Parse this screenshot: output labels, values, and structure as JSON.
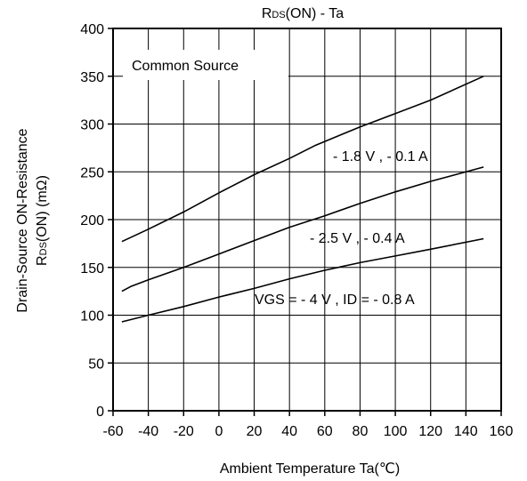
{
  "chart_data": {
    "type": "line",
    "title": {
      "prefix": "R",
      "sub": "DS",
      "suffix": "(ON) - Ta"
    },
    "xlabel": "Ambient Temperature Ta(℃)",
    "ylabel_line1": "Drain-Source ON-Resistance",
    "ylabel_line2": {
      "prefix": "R",
      "sub": "DS",
      "suffix": "(ON) (mΩ)"
    },
    "annotation": "Common Source",
    "xlim": [
      -60,
      160
    ],
    "ylim": [
      0,
      400
    ],
    "xticks": [
      -60,
      -40,
      -20,
      0,
      20,
      40,
      60,
      80,
      100,
      120,
      140,
      160
    ],
    "yticks": [
      0,
      50,
      100,
      150,
      200,
      250,
      300,
      350,
      400
    ],
    "grid": true,
    "series": [
      {
        "name": "- 1.8 V , - 0.1 A",
        "x": [
          -55,
          -40,
          -20,
          0,
          20,
          40,
          55,
          80,
          100,
          120,
          150
        ],
        "y": [
          177,
          190,
          208,
          228,
          247,
          264,
          278,
          297,
          311,
          325,
          350
        ]
      },
      {
        "name": "- 2.5 V , - 0.4 A",
        "x": [
          -55,
          -50,
          -40,
          -20,
          0,
          20,
          40,
          60,
          80,
          100,
          120,
          150
        ],
        "y": [
          125,
          130,
          137,
          150,
          164,
          178,
          192,
          204,
          217,
          229,
          240,
          255
        ]
      },
      {
        "name": "VGS = - 4 V , ID = - 0.8 A",
        "x": [
          -55,
          -40,
          -20,
          0,
          20,
          40,
          60,
          80,
          100,
          120,
          150
        ],
        "y": [
          93,
          100,
          109,
          119,
          128,
          138,
          147,
          155,
          162,
          169,
          180
        ]
      }
    ]
  }
}
